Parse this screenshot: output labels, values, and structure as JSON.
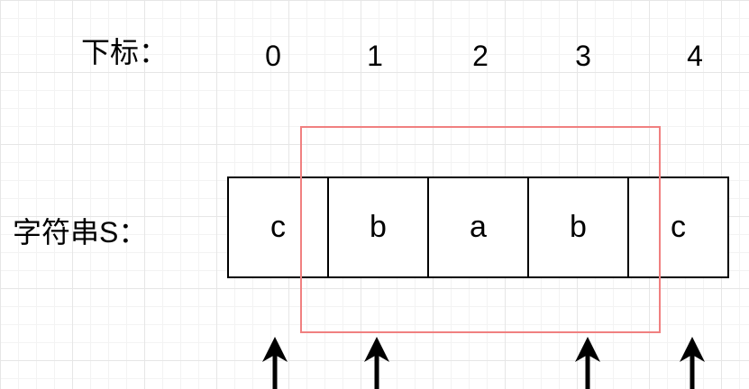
{
  "labels": {
    "index_label": "下标：",
    "string_label": "字符串S："
  },
  "indices": [
    "0",
    "1",
    "2",
    "3",
    "4"
  ],
  "characters": [
    "c",
    "b",
    "a",
    "b",
    "c"
  ],
  "colors": {
    "window_border": "#f08080",
    "cell_border": "#000000",
    "arrow": "#000000"
  },
  "highlight": {
    "from_index": 1,
    "to_index": 3
  },
  "arrow_indices": [
    0,
    1,
    3,
    4
  ]
}
